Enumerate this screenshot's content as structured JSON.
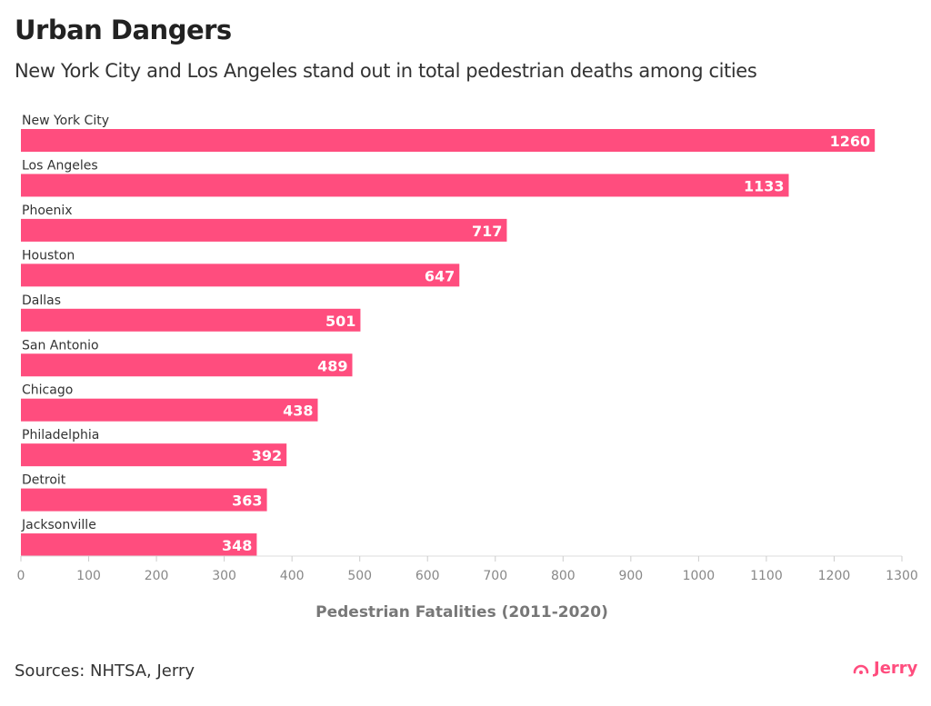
{
  "title": "Urban Dangers",
  "subtitle": "New York City and Los Angeles stand out in total pedestrian deaths among cities",
  "source": "Sources: NHTSA, Jerry",
  "logo": "Jerry",
  "chart_data": {
    "type": "bar",
    "orientation": "horizontal",
    "categories": [
      "New York City",
      "Los Angeles",
      "Phoenix",
      "Houston",
      "Dallas",
      "San Antonio",
      "Chicago",
      "Philadelphia",
      "Detroit",
      "Jacksonville"
    ],
    "values": [
      1260,
      1133,
      717,
      647,
      501,
      489,
      438,
      392,
      363,
      348
    ],
    "xlabel": "Pedestrian Fatalities (2011-2020)",
    "xlim": [
      0,
      1300
    ],
    "xticks": [
      0,
      100,
      200,
      300,
      400,
      500,
      600,
      700,
      800,
      900,
      1000,
      1100,
      1200,
      1300
    ],
    "bar_color": "#ff4d7e",
    "grid": false,
    "data_labels": true
  }
}
